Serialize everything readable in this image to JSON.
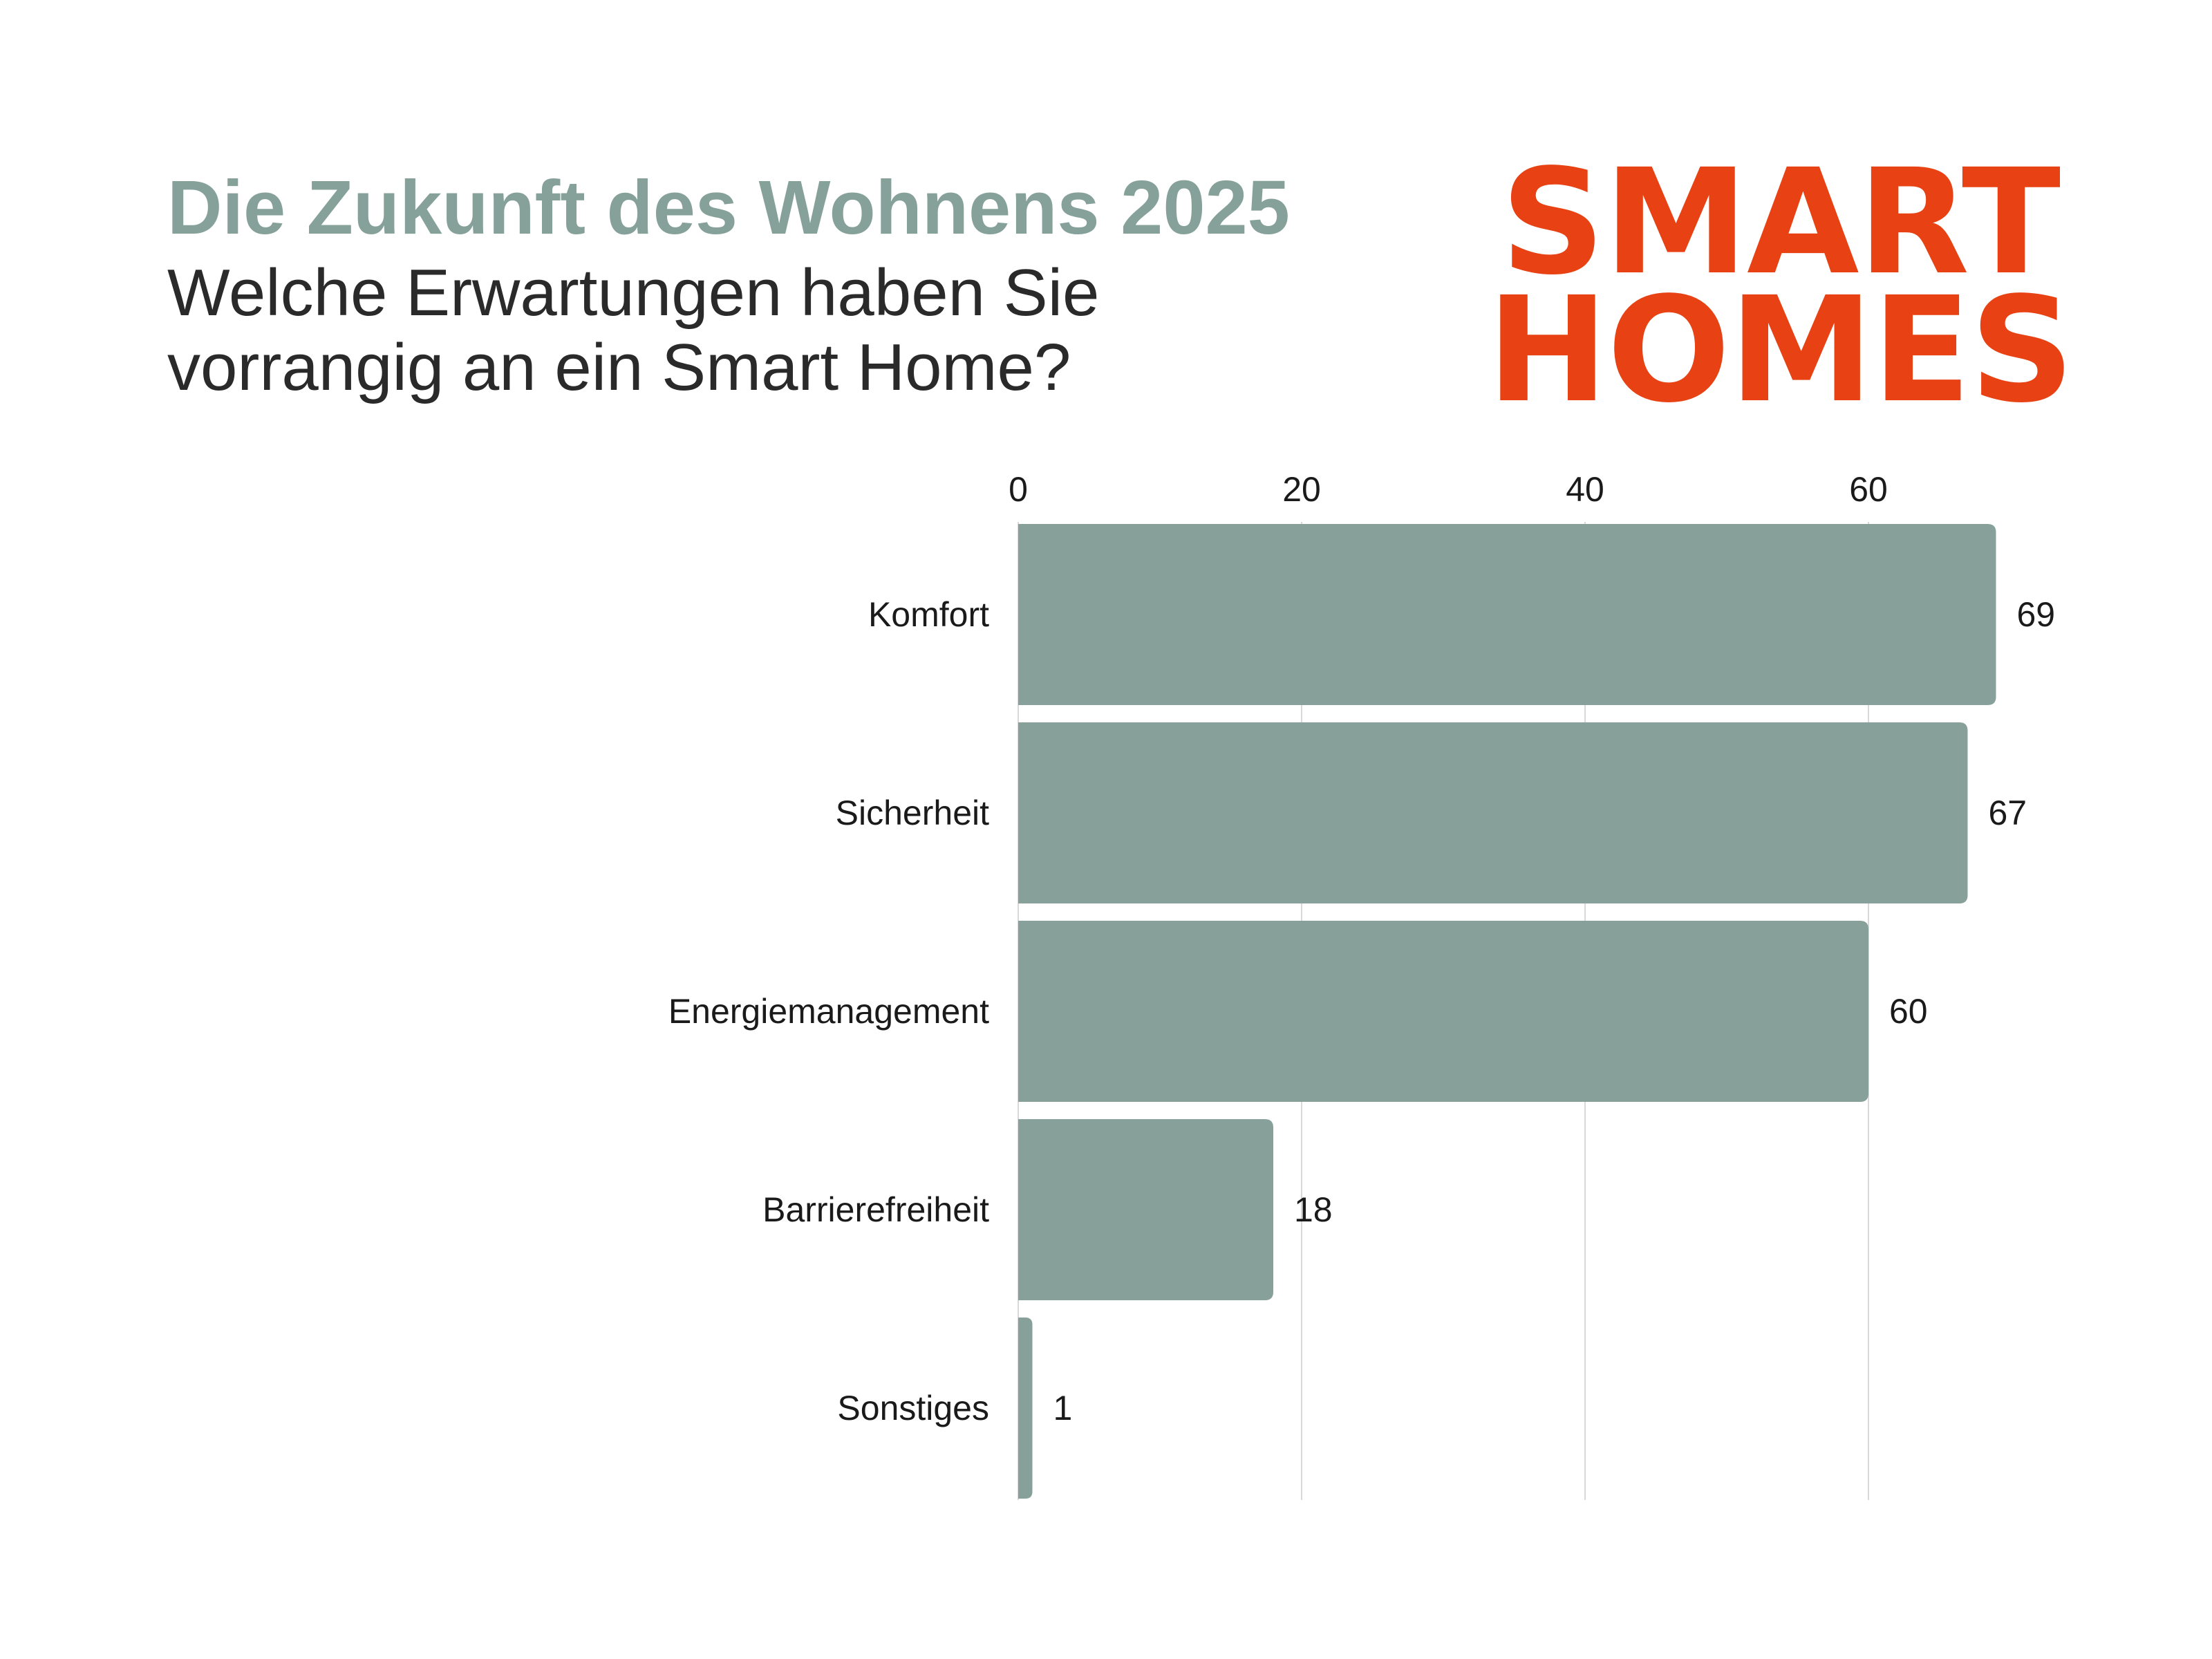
{
  "header": {
    "title": "Die Zukunft des Wohnens 2025",
    "subtitle": "Welche Erwartungen haben Sie vorrangig an ein Smart Home?"
  },
  "brand": {
    "line1": "SMART",
    "line2": "HOMES",
    "color": "#e84214"
  },
  "chart_data": {
    "type": "bar",
    "orientation": "horizontal",
    "categories": [
      "Komfort",
      "Sicherheit",
      "Energiemanagement",
      "Barrierefreiheit",
      "Sonstiges"
    ],
    "values": [
      69,
      67,
      60,
      18,
      1
    ],
    "ticks": [
      "0",
      "20",
      "40",
      "60"
    ],
    "xlim": [
      0,
      70
    ],
    "x_axis_position": "top",
    "grid": true,
    "bar_color": "#87a09a",
    "grid_color": "#d9d9d9"
  }
}
